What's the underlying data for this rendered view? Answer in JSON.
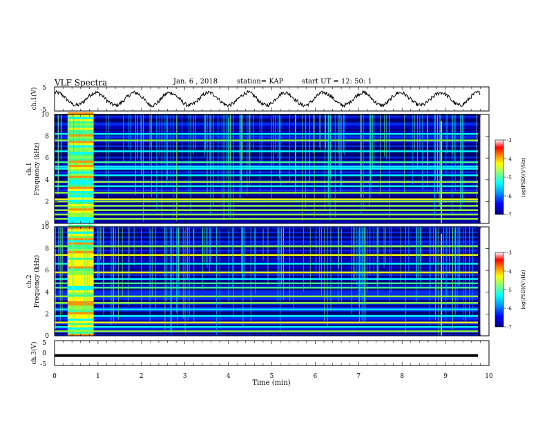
{
  "header": {
    "title": "VLF Spectra",
    "date": "Jan. 6 , 2018",
    "station": "station= KAP",
    "start": "start UT = 12: 50: 1"
  },
  "colors": {
    "waveform": "#000000",
    "background": "#ffffff",
    "colormap": [
      "#00007f",
      "#0000ff",
      "#00a0ff",
      "#00ffff",
      "#7fff7f",
      "#ffff00",
      "#ff8000",
      "#ff0000",
      "#ffffff"
    ]
  },
  "chart_data": [
    {
      "type": "line",
      "panel": "top-waveform",
      "ylabel": "ch.1(V)",
      "yticks": [
        "5",
        "-5"
      ],
      "ylim": [
        -5,
        5
      ],
      "xlim": [
        0,
        10
      ],
      "waveform_crests_min": [
        0.95,
        1.85,
        2.65,
        3.55,
        4.45,
        5.3,
        6.2,
        7.1,
        7.95,
        8.9,
        9.75
      ],
      "trace_end_min": 9.8
    },
    {
      "type": "heatmap",
      "panel": "ch.1 spectrogram",
      "ylabel": "ch.1",
      "ylabel2": "Frequency (kHz)",
      "ylim": [
        0,
        10
      ],
      "yticks": [
        "0",
        "2",
        "4",
        "6",
        "8",
        "10"
      ],
      "xlim": [
        0,
        10
      ],
      "colorbar": {
        "label": "log(PSD)(V²/Hz)",
        "range": [
          -7,
          -3
        ],
        "ticks": [
          "-3",
          "-4",
          "-5",
          "-6",
          "-7"
        ]
      },
      "bands_khz": [
        0.4,
        0.8,
        1.2,
        1.6,
        2.0,
        2.2,
        2.8,
        3.4,
        3.8,
        4.4,
        5.0,
        5.2,
        5.6,
        6.6,
        7.6,
        8.2
      ],
      "strong_interval_min": [
        0.3,
        0.9
      ],
      "spike_min": [
        8.9
      ]
    },
    {
      "type": "heatmap",
      "panel": "ch.2 spectrogram",
      "ylabel": "ch.2",
      "ylabel2": "Frequency (kHz)",
      "ylim": [
        0,
        10
      ],
      "yticks": [
        "0",
        "2",
        "4",
        "6",
        "8",
        "10"
      ],
      "xlim": [
        0,
        10
      ],
      "colorbar": {
        "label": "log(PSD)(V²/Hz)",
        "range": [
          -7,
          -3
        ],
        "ticks": [
          "-3",
          "-4",
          "-5",
          "-6",
          "-7"
        ]
      },
      "bands_khz": [
        0.4,
        0.8,
        1.2,
        1.8,
        2.4,
        3.0,
        3.6,
        4.4,
        4.8,
        5.2,
        5.8,
        6.6,
        7.4,
        8.2
      ],
      "strong_interval_min": [
        0.3,
        0.9
      ],
      "spike_min": [
        8.9
      ]
    },
    {
      "type": "line",
      "panel": "bottom-trace",
      "ylabel": "ch.3(V)",
      "yticks": [
        "5",
        "0",
        "-5"
      ],
      "ylim": [
        -5,
        5
      ],
      "xlim": [
        0,
        10
      ],
      "constant_value": -1.0
    }
  ],
  "xaxis": {
    "label": "Time (min)",
    "ticks": [
      "0",
      "1",
      "2",
      "3",
      "4",
      "5",
      "6",
      "7",
      "8",
      "9",
      "10"
    ]
  }
}
